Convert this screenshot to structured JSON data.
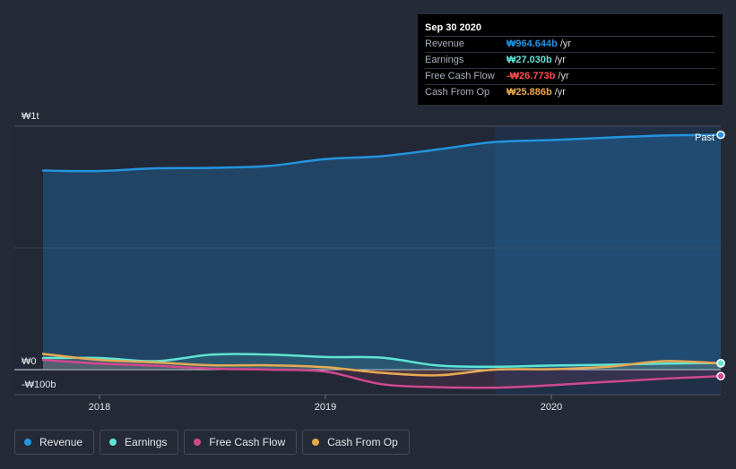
{
  "chart_data": {
    "type": "line",
    "y_axis": {
      "tick_labels": [
        "₩1t",
        "₩0",
        "-₩100b"
      ],
      "ylim": [
        -100,
        1000
      ],
      "unit": "₩b"
    },
    "x_axis": {
      "tick_labels": [
        "2018",
        "2019",
        "2020"
      ],
      "xlim": [
        2017.75,
        2020.75
      ]
    },
    "past_label": "Past",
    "forecast_region_start": 2019.75,
    "series": [
      {
        "name": "Revenue",
        "key": "revenue",
        "color": "#2394df",
        "x": [
          2017.75,
          2018.0,
          2018.25,
          2018.5,
          2018.75,
          2019.0,
          2019.25,
          2019.5,
          2019.75,
          2020.0,
          2020.25,
          2020.5,
          2020.75
        ],
        "values": [
          818,
          816,
          827,
          829,
          837,
          865,
          877,
          905,
          935,
          943,
          953,
          962,
          964.644
        ]
      },
      {
        "name": "Earnings",
        "key": "earnings",
        "color": "#5fe5d6",
        "x": [
          2017.75,
          2018.0,
          2018.25,
          2018.5,
          2018.75,
          2019.0,
          2019.25,
          2019.5,
          2019.75,
          2020.0,
          2020.25,
          2020.5,
          2020.75
        ],
        "values": [
          48,
          48,
          35,
          62,
          62,
          52,
          49,
          17,
          12,
          17,
          20,
          25,
          27.03
        ]
      },
      {
        "name": "Free Cash Flow",
        "key": "fcf",
        "color": "#d2488e",
        "x": [
          2017.75,
          2018.0,
          2018.25,
          2018.5,
          2018.75,
          2019.0,
          2019.25,
          2019.5,
          2019.75,
          2020.0,
          2020.25,
          2020.5,
          2020.75
        ],
        "values": [
          40,
          25,
          16,
          4,
          0,
          -8,
          -60,
          -72,
          -74,
          -64,
          -50,
          -37,
          -26.773
        ]
      },
      {
        "name": "Cash From Op",
        "key": "cfo",
        "color": "#e8a951",
        "x": [
          2017.75,
          2018.0,
          2018.25,
          2018.5,
          2018.75,
          2019.0,
          2019.25,
          2019.5,
          2019.75,
          2020.0,
          2020.25,
          2020.5,
          2020.75
        ],
        "values": [
          65,
          40,
          30,
          18,
          18,
          10,
          -13,
          -23,
          0,
          2,
          12,
          35,
          25.886
        ]
      }
    ]
  },
  "tooltip": {
    "date": "Sep 30 2020",
    "rows": [
      {
        "name": "Revenue",
        "value": "₩964.644b",
        "unit": "/yr",
        "color": "#2394df"
      },
      {
        "name": "Earnings",
        "value": "₩27.030b",
        "unit": "/yr",
        "color": "#5fe5d6"
      },
      {
        "name": "Free Cash Flow",
        "value": "-₩26.773b",
        "unit": "/yr",
        "color": "#ff4d4d"
      },
      {
        "name": "Cash From Op",
        "value": "₩25.886b",
        "unit": "/yr",
        "color": "#e8a951"
      }
    ]
  },
  "legend": [
    {
      "label": "Revenue",
      "color": "#2394df"
    },
    {
      "label": "Earnings",
      "color": "#5fe5d6"
    },
    {
      "label": "Free Cash Flow",
      "color": "#d2488e"
    },
    {
      "label": "Cash From Op",
      "color": "#e8a951"
    }
  ]
}
